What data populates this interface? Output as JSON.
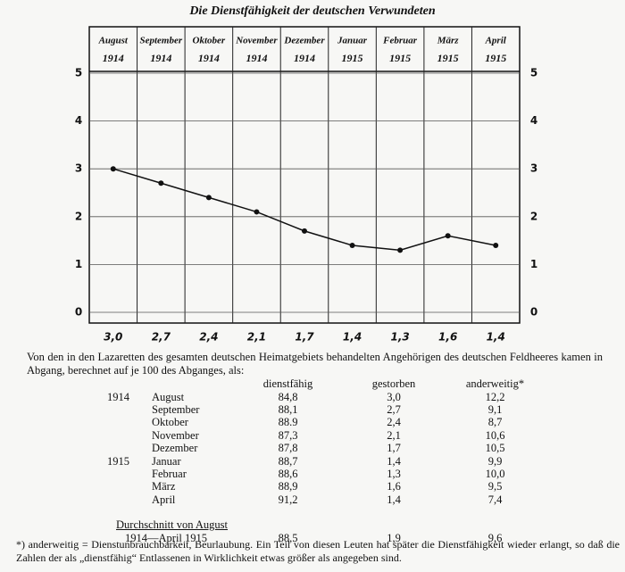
{
  "chart_data": {
    "type": "line",
    "title": "Die Dienstfähigkeit der deutschen Verwundeten",
    "categories": [
      "August",
      "September",
      "Oktober",
      "November",
      "Dezember",
      "Januar",
      "Februar",
      "März",
      "April"
    ],
    "years": [
      "1914",
      "1914",
      "1914",
      "1914",
      "1914",
      "1915",
      "1915",
      "1915",
      "1915"
    ],
    "values": [
      3.0,
      2.7,
      2.4,
      2.1,
      1.7,
      1.4,
      1.3,
      1.6,
      1.4
    ],
    "value_labels": [
      "3,0",
      "2,7",
      "2,4",
      "2,1",
      "1,7",
      "1,4",
      "1,3",
      "1,6",
      "1,4"
    ],
    "color": "#111111",
    "ylim": [
      0,
      5
    ],
    "yticks": [
      0,
      1,
      2,
      3,
      4,
      5
    ],
    "y2lim": [
      0,
      5
    ],
    "y2ticks": [
      0,
      1,
      2,
      3,
      4,
      5
    ],
    "grid": true
  },
  "intro": "Von den in den Lazaretten des gesamten deutschen Heimatgebiets behandelten Angehörigen des deutschen Feldheeres kamen in Abgang, berechnet auf je 100 des Abganges, als:",
  "table": {
    "header": [
      "dienstfähig",
      "gestorben",
      "anderweitig*"
    ],
    "rows": [
      {
        "year": "1914",
        "month": "August",
        "values": [
          "84,8",
          "3,0",
          "12,2"
        ]
      },
      {
        "month": "September",
        "values": [
          "88,1",
          "2,7",
          "9,1"
        ]
      },
      {
        "month": "Oktober",
        "values": [
          "88.9",
          "2,4",
          "8,7"
        ]
      },
      {
        "month": "November",
        "values": [
          "87,3",
          "2,1",
          "10,6"
        ]
      },
      {
        "month": "Dezember",
        "values": [
          "87,8",
          "1,7",
          "10,5"
        ]
      },
      {
        "year": "1915",
        "month": "Januar",
        "values": [
          "88,7",
          "1,4",
          "9,9"
        ]
      },
      {
        "month": "Februar",
        "values": [
          "88,6",
          "1,3",
          "10,0"
        ]
      },
      {
        "month": "März",
        "values": [
          "88,9",
          "1,6",
          "9,5"
        ]
      },
      {
        "month": "April",
        "values": [
          "91,2",
          "1,4",
          "7,4"
        ]
      }
    ],
    "summary": {
      "label": "Durchschnitt von August",
      "label2": "1914—April 1915",
      "values": [
        "88,5",
        "1,9",
        "9,6"
      ]
    }
  },
  "footnote": "*) anderweitig = Dienstunbrauchbarkeit, Beurlaubung. Ein Teil von diesen Leuten hat später die Dienstfähigkeit wieder erlangt, so daß die Zahlen der als „dienstfähig“ Entlassenen in Wirklichkeit etwas größer als angegeben sind."
}
